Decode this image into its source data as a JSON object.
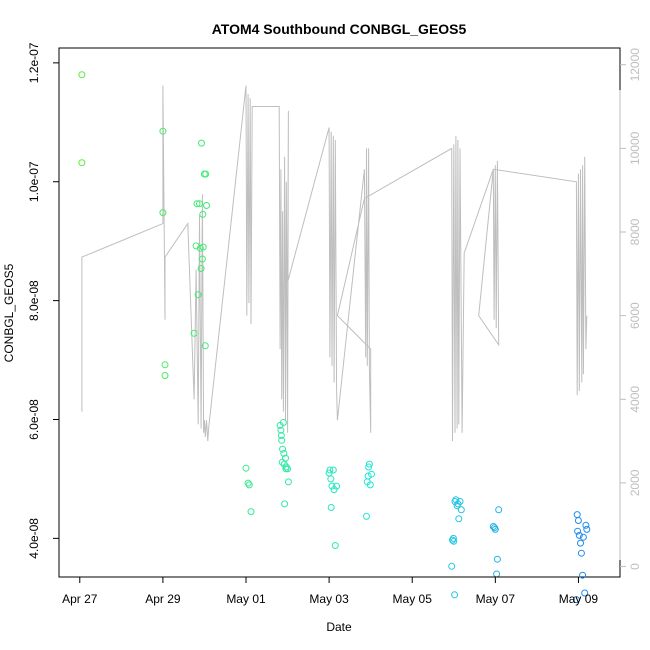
{
  "chart_data": {
    "type": "scatter",
    "title": "ATOM4 Southbound CONBGL_GEOS5",
    "xlabel": "Date",
    "ylabel": "CONBGL_GEOS5",
    "x_ticks": [
      "Apr 27",
      "Apr 29",
      "May 01",
      "May 03",
      "May 05",
      "May 07",
      "May 09"
    ],
    "y_left_ticks": [
      "4.0e-08",
      "6.0e-08",
      "8.0e-08",
      "1.0e-07",
      "1.2e-07"
    ],
    "y_right_ticks": [
      "0",
      "2000",
      "4000",
      "6000",
      "8000",
      "10000",
      "12000"
    ],
    "xlim_days": [
      -0.5,
      13.0
    ],
    "ylim_left": [
      3.35e-08,
      1.225e-07
    ],
    "ylim_right": [
      -250,
      12400
    ],
    "point_color_start": "#55ee33",
    "point_color_end": "#2288ee",
    "line_color": "#bebebe",
    "scatter_points": [
      [
        0.05,
        1.18e-07
      ],
      [
        0.05,
        1.032e-07
      ],
      [
        2.0,
        1.085e-07
      ],
      [
        2.0,
        9.48e-08
      ],
      [
        2.05,
        6.92e-08
      ],
      [
        2.05,
        6.74e-08
      ],
      [
        2.75,
        7.45e-08
      ],
      [
        2.8,
        8.92e-08
      ],
      [
        2.82,
        9.63e-08
      ],
      [
        2.85,
        8.1e-08
      ],
      [
        2.88,
        9.63e-08
      ],
      [
        2.9,
        8.88e-08
      ],
      [
        2.92,
        8.54e-08
      ],
      [
        2.93,
        1.065e-07
      ],
      [
        2.95,
        8.7e-08
      ],
      [
        2.96,
        9.45e-08
      ],
      [
        2.97,
        8.9e-08
      ],
      [
        3.0,
        1.013e-07
      ],
      [
        3.02,
        7.24e-08
      ],
      [
        3.03,
        1.013e-07
      ],
      [
        3.05,
        9.6e-08
      ],
      [
        4.0,
        5.18e-08
      ],
      [
        4.05,
        4.93e-08
      ],
      [
        4.08,
        4.9e-08
      ],
      [
        4.12,
        4.45e-08
      ],
      [
        4.82,
        5.9e-08
      ],
      [
        4.84,
        5.82e-08
      ],
      [
        4.85,
        5.73e-08
      ],
      [
        4.86,
        5.65e-08
      ],
      [
        4.87,
        5.28e-08
      ],
      [
        4.88,
        5.5e-08
      ],
      [
        4.9,
        5.95e-08
      ],
      [
        4.91,
        5.43e-08
      ],
      [
        4.92,
        5.25e-08
      ],
      [
        4.93,
        4.58e-08
      ],
      [
        4.95,
        5.35e-08
      ],
      [
        4.96,
        5.17e-08
      ],
      [
        4.97,
        5.2e-08
      ],
      [
        5.0,
        5.17e-08
      ],
      [
        5.02,
        4.95e-08
      ],
      [
        6.0,
        5.1e-08
      ],
      [
        6.02,
        5.15e-08
      ],
      [
        6.04,
        5e-08
      ],
      [
        6.05,
        4.52e-08
      ],
      [
        6.07,
        4.88e-08
      ],
      [
        6.1,
        5.15e-08
      ],
      [
        6.12,
        4.82e-08
      ],
      [
        6.15,
        3.88e-08
      ],
      [
        6.18,
        4.88e-08
      ],
      [
        6.9,
        4.37e-08
      ],
      [
        6.92,
        4.95e-08
      ],
      [
        6.94,
        5.05e-08
      ],
      [
        6.95,
        5.2e-08
      ],
      [
        6.97,
        5.25e-08
      ],
      [
        6.99,
        4.9e-08
      ],
      [
        7.02,
        5.08e-08
      ],
      [
        8.95,
        3.53e-08
      ],
      [
        8.97,
        3.97e-08
      ],
      [
        8.99,
        4e-08
      ],
      [
        9.0,
        3.95e-08
      ],
      [
        9.02,
        3.05e-08
      ],
      [
        9.03,
        4.62e-08
      ],
      [
        9.05,
        4.65e-08
      ],
      [
        9.08,
        4.55e-08
      ],
      [
        9.1,
        4.58e-08
      ],
      [
        9.12,
        4.33e-08
      ],
      [
        9.15,
        4.62e-08
      ],
      [
        9.18,
        4.48e-08
      ],
      [
        9.95,
        4.2e-08
      ],
      [
        9.98,
        4.18e-08
      ],
      [
        10.0,
        4.15e-08
      ],
      [
        10.03,
        3.4e-08
      ],
      [
        10.05,
        3.65e-08
      ],
      [
        10.08,
        4.48e-08
      ],
      [
        11.95,
        2.97e-08
      ],
      [
        11.97,
        4.4e-08
      ],
      [
        11.98,
        4.12e-08
      ],
      [
        12.0,
        4.3e-08
      ],
      [
        12.02,
        4.05e-08
      ],
      [
        12.05,
        3.92e-08
      ],
      [
        12.07,
        3.75e-08
      ],
      [
        12.1,
        3.38e-08
      ],
      [
        12.12,
        4.02e-08
      ],
      [
        12.15,
        3.08e-08
      ],
      [
        12.18,
        4.22e-08
      ],
      [
        12.2,
        4.15e-08
      ]
    ],
    "line_points": [
      [
        0.05,
        3700
      ],
      [
        0.05,
        7400
      ],
      [
        2.0,
        8200
      ],
      [
        2.0,
        11500
      ],
      [
        2.05,
        5900
      ],
      [
        2.05,
        7400
      ],
      [
        2.6,
        8200
      ],
      [
        2.75,
        4000
      ],
      [
        2.8,
        7100
      ],
      [
        2.85,
        3400
      ],
      [
        2.88,
        8400
      ],
      [
        2.92,
        3300
      ],
      [
        2.95,
        8900
      ],
      [
        2.98,
        3200
      ],
      [
        3.0,
        3500
      ],
      [
        3.02,
        3100
      ],
      [
        3.05,
        3500
      ],
      [
        3.08,
        3000
      ],
      [
        3.1,
        3300
      ],
      [
        4.0,
        11500
      ],
      [
        4.02,
        6000
      ],
      [
        4.05,
        11300
      ],
      [
        4.07,
        6300
      ],
      [
        4.1,
        11200
      ],
      [
        4.12,
        5800
      ],
      [
        4.15,
        11000
      ],
      [
        4.8,
        11000
      ],
      [
        4.82,
        5200
      ],
      [
        4.84,
        9500
      ],
      [
        4.86,
        4000
      ],
      [
        4.88,
        8500
      ],
      [
        4.9,
        3700
      ],
      [
        4.93,
        9800
      ],
      [
        4.95,
        3500
      ],
      [
        4.97,
        9200
      ],
      [
        5.0,
        3200
      ],
      [
        5.02,
        10900
      ],
      [
        5.0,
        6800
      ],
      [
        6.0,
        10500
      ],
      [
        6.02,
        5000
      ],
      [
        6.05,
        10400
      ],
      [
        6.07,
        4800
      ],
      [
        6.1,
        10300
      ],
      [
        6.12,
        4400
      ],
      [
        6.15,
        10200
      ],
      [
        6.18,
        4200
      ],
      [
        6.2,
        3500
      ],
      [
        6.85,
        9500
      ],
      [
        6.88,
        5000
      ],
      [
        6.9,
        10000
      ],
      [
        6.92,
        4800
      ],
      [
        6.95,
        10000
      ],
      [
        6.97,
        4700
      ],
      [
        7.0,
        3200
      ],
      [
        7.0,
        5200
      ],
      [
        6.2,
        6000
      ],
      [
        6.85,
        8800
      ],
      [
        8.95,
        10000
      ],
      [
        8.97,
        3000
      ],
      [
        9.0,
        10100
      ],
      [
        9.03,
        3200
      ],
      [
        9.05,
        10300
      ],
      [
        9.08,
        3300
      ],
      [
        9.1,
        10200
      ],
      [
        9.12,
        3400
      ],
      [
        9.15,
        10000
      ],
      [
        9.2,
        3200
      ],
      [
        9.25,
        7500
      ],
      [
        9.95,
        9500
      ],
      [
        9.97,
        5900
      ],
      [
        10.0,
        9600
      ],
      [
        10.02,
        5700
      ],
      [
        10.05,
        9700
      ],
      [
        10.08,
        5300
      ],
      [
        9.6,
        6000
      ],
      [
        9.95,
        9500
      ],
      [
        11.95,
        9200
      ],
      [
        11.97,
        4100
      ],
      [
        12.0,
        9400
      ],
      [
        12.02,
        4200
      ],
      [
        12.05,
        9500
      ],
      [
        12.08,
        4400
      ],
      [
        12.1,
        9600
      ],
      [
        12.12,
        4600
      ],
      [
        12.15,
        9800
      ],
      [
        12.18,
        5200
      ],
      [
        12.2,
        6000
      ]
    ]
  }
}
